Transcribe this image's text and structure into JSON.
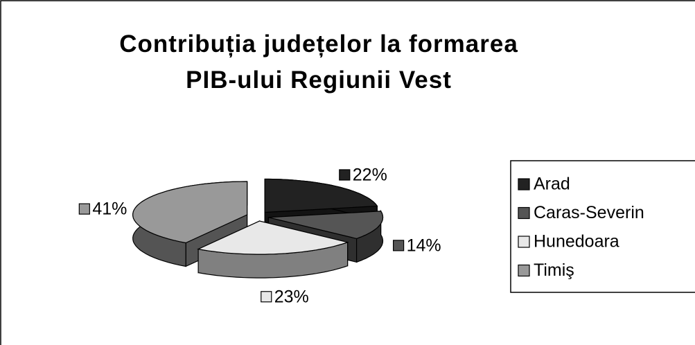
{
  "chart_data": {
    "type": "pie3d",
    "title": "Contribuția județelor la formarea PIB-ului Regiunii Vest",
    "categories": [
      "Arad",
      "Caras-Severin",
      "Hunedoara",
      "Timiş"
    ],
    "values": [
      22,
      14,
      23,
      41
    ],
    "value_labels": [
      "22%",
      "14%",
      "23%",
      "41%"
    ],
    "colors": [
      "#222222",
      "#555555",
      "#e8e8e8",
      "#999999"
    ],
    "legend": "right"
  }
}
